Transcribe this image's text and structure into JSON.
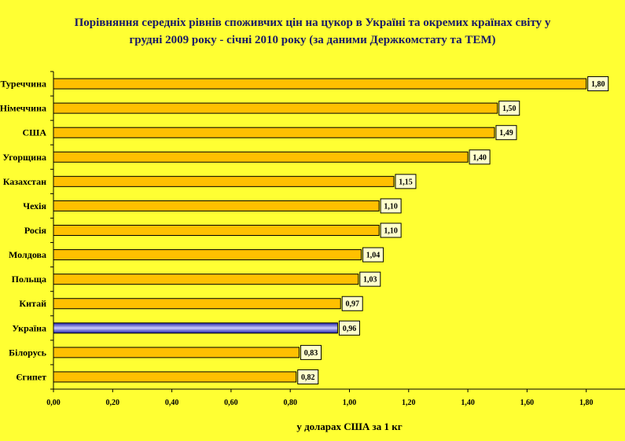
{
  "chart_data": {
    "type": "bar",
    "orientation": "horizontal",
    "title_lines": [
      "Порівняння середніх рівнів споживчих цін на цукор в Україні та окремих країнах світу у",
      "грудні 2009 року - січні 2010 року (за даними Держкомстату та ТЕМ)"
    ],
    "categories": [
      "Туреччина",
      "Німеччина",
      "США",
      "Угорщина",
      "Казахстан",
      "Чехія",
      "Росія",
      "Молдова",
      "Польща",
      "Китай",
      "Україна",
      "Білорусь",
      "Єгипет"
    ],
    "values": [
      1.8,
      1.5,
      1.49,
      1.4,
      1.15,
      1.1,
      1.1,
      1.04,
      1.03,
      0.97,
      0.96,
      0.83,
      0.82
    ],
    "value_labels": [
      "1,80",
      "1,50",
      "1,49",
      "1,40",
      "1,15",
      "1,10",
      "1,10",
      "1,04",
      "1,03",
      "0,97",
      "0,96",
      "0,83",
      "0,82"
    ],
    "xticks": [
      "0,00",
      "0,20",
      "0,40",
      "0,60",
      "0,80",
      "1,00",
      "1,20",
      "1,40",
      "1,60",
      "1,80"
    ],
    "xlabel": "у доларах США за 1 кг",
    "xlim": [
      0,
      2.0
    ],
    "grid": false,
    "legend": "none",
    "highlight_category": "Україна",
    "colors": {
      "background": "#ffff33",
      "bar": "#ffc000",
      "highlight_bar": "#3333cc",
      "label_box": "#ffffcc",
      "title": "#1a1a66"
    }
  }
}
